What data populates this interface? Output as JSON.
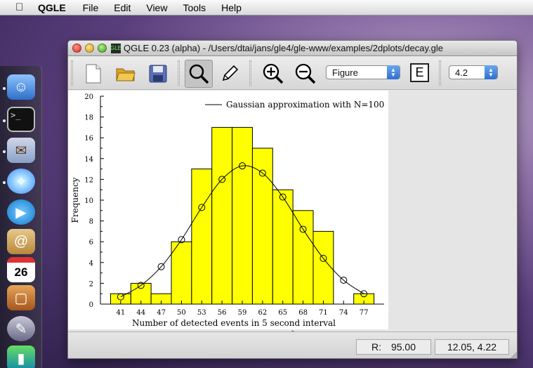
{
  "menubar": {
    "app_name": "QGLE",
    "items": [
      "File",
      "Edit",
      "View",
      "Tools",
      "Help"
    ]
  },
  "window": {
    "title": "QGLE 0.23 (alpha) - /Users/dtai/jans/gle4/gle-www/examples/2dplots/decay.gle",
    "badge": "GLE"
  },
  "toolbar": {
    "object_select": "Figure",
    "e_label": "E",
    "version_select": "4.2"
  },
  "status": {
    "radius_label": "R:",
    "radius_value": "95.00",
    "coords": "12.05, 4.22"
  },
  "chart_data": {
    "type": "bar",
    "xlabel": "Number of detected events in 5 second interval",
    "ylabel": "Frequency",
    "ylim": [
      0,
      20
    ],
    "yticks": [
      0,
      2,
      4,
      6,
      8,
      10,
      12,
      14,
      16,
      18,
      20
    ],
    "xticks": [
      "41",
      "44",
      "47",
      "50",
      "53",
      "56",
      "59",
      "62",
      "65",
      "68",
      "71",
      "74",
      "77"
    ],
    "bars": {
      "x_start": [
        39.5,
        42.5,
        45.5,
        48.5,
        51.5,
        54.5,
        57.5,
        60.5,
        63.5,
        66.5,
        69.5,
        72.5,
        75.5
      ],
      "values": [
        1,
        2,
        1,
        6,
        13,
        17,
        17,
        15,
        11,
        9,
        7,
        0,
        1
      ],
      "width": 3,
      "color": "#ffff00"
    },
    "series": [
      {
        "name": "Gaussian approximation with N=100",
        "x": [
          41,
          44,
          47,
          50,
          53,
          56,
          59,
          62,
          65,
          68,
          71,
          74,
          77
        ],
        "values": [
          0.7,
          1.8,
          3.6,
          6.2,
          9.3,
          12.0,
          13.3,
          12.6,
          10.3,
          7.2,
          4.4,
          2.3,
          1.0
        ]
      }
    ],
    "legend": "top-right"
  }
}
